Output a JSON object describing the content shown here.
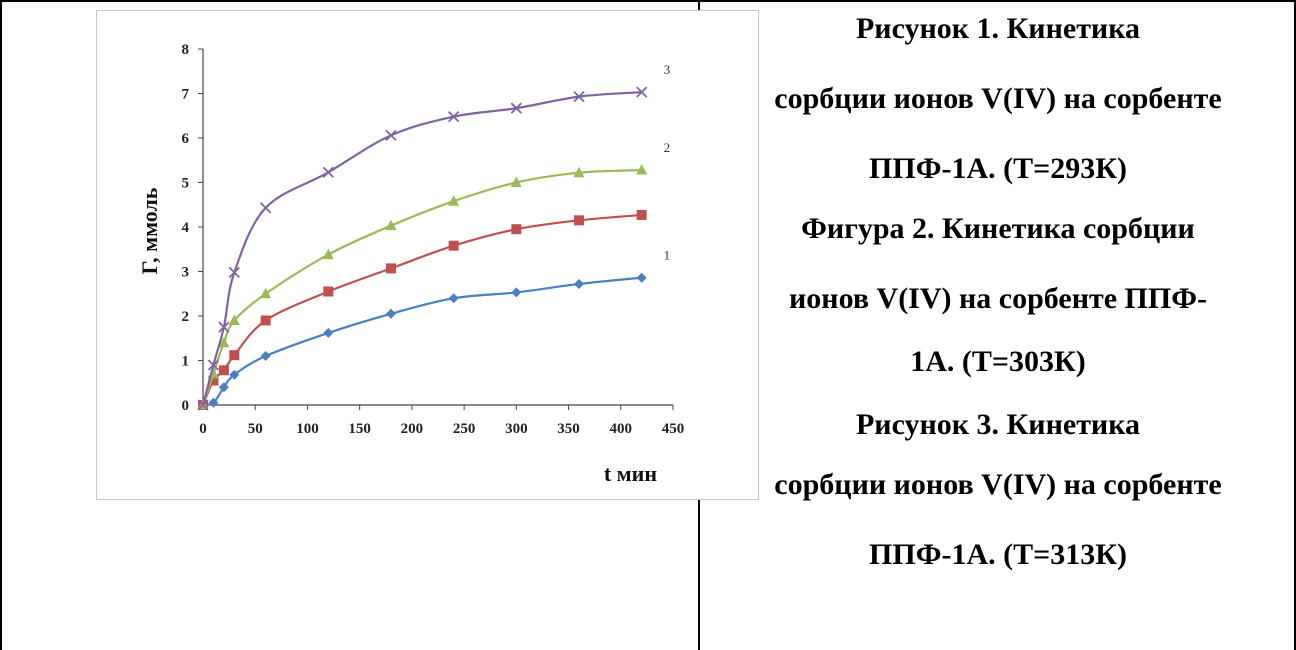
{
  "chart_data": {
    "type": "line",
    "xlabel": "t мин",
    "ylabel": "Г, ммоль",
    "xlim": [
      0,
      450
    ],
    "ylim": [
      0,
      8
    ],
    "x_ticks": [
      "0",
      "50",
      "100",
      "150",
      "200",
      "250",
      "300",
      "350",
      "400",
      "450"
    ],
    "y_ticks": [
      "0",
      "1",
      "2",
      "3",
      "4",
      "5",
      "6",
      "7",
      "8"
    ],
    "grid": false,
    "series": [
      {
        "name": "1",
        "color": "#4a7fc1",
        "marker": "diamond",
        "x": [
          0,
          10,
          20,
          30,
          60,
          120,
          180,
          240,
          300,
          360,
          420
        ],
        "y": [
          0,
          0.05,
          0.4,
          0.68,
          1.1,
          1.62,
          2.05,
          2.4,
          2.53,
          2.72,
          2.86
        ]
      },
      {
        "name": "",
        "color": "#c0504d",
        "marker": "square",
        "x": [
          0,
          10,
          20,
          30,
          60,
          120,
          180,
          240,
          300,
          360,
          420
        ],
        "y": [
          0,
          0.55,
          0.78,
          1.12,
          1.9,
          2.55,
          3.07,
          3.58,
          3.95,
          4.15,
          4.27
        ]
      },
      {
        "name": "2",
        "color": "#9bbb59",
        "marker": "triangle",
        "x": [
          0,
          10,
          20,
          30,
          60,
          120,
          180,
          240,
          300,
          360,
          420
        ],
        "y": [
          0,
          0.7,
          1.4,
          1.9,
          2.5,
          3.38,
          4.03,
          4.58,
          5.0,
          5.22,
          5.28
        ]
      },
      {
        "name": "3",
        "color": "#8064a2",
        "marker": "cross",
        "x": [
          0,
          10,
          20,
          30,
          60,
          120,
          180,
          240,
          300,
          360,
          420
        ],
        "y": [
          0,
          0.9,
          1.75,
          2.98,
          4.43,
          5.23,
          6.06,
          6.48,
          6.67,
          6.93,
          7.03
        ]
      }
    ]
  },
  "caption": {
    "lines": [
      "Рисунок 1. Кинетика",
      "сорбции ионов V(IV) на сорбенте",
      "ППФ-1А. (Т=293К)",
      "Фигура 2. Кинетика сорбции",
      "ионов V(IV) на сорбенте ППФ-",
      "1А. (Т=303К)",
      "Рисунок 3. Кинетика",
      "сорбции ионов V(IV) на сорбенте",
      "ППФ-1А. (Т=313К)"
    ]
  }
}
